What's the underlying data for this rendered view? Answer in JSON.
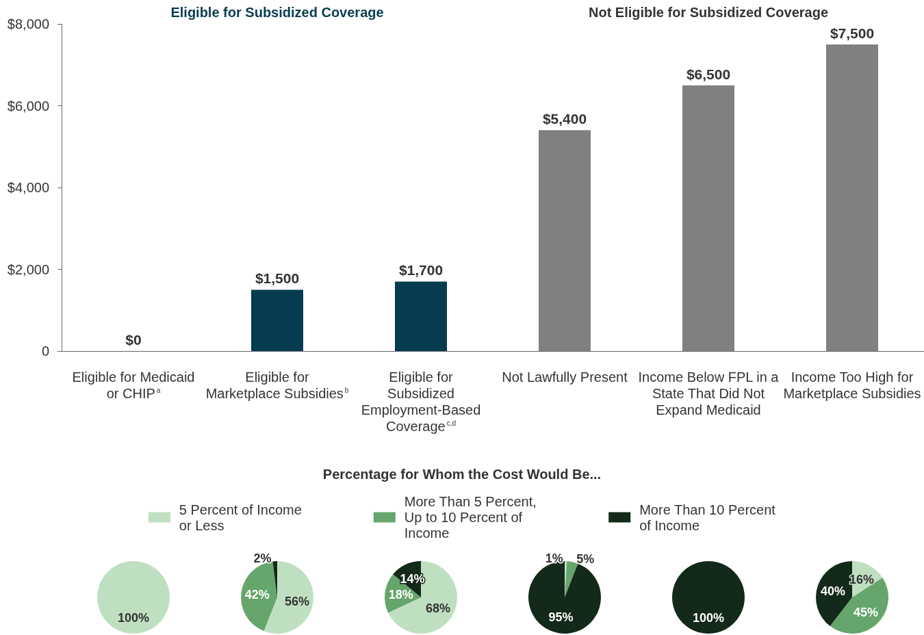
{
  "chart_data": [
    {
      "type": "bar",
      "categories": [
        "Eligible for Medicaid or CHIP$^{a}$",
        "Eligible for Marketplace Subsidies$^{b}$",
        "Eligible for Subsidized Employment-Based Coverage$^{c,d}$",
        "Not Lawfully Present",
        "Income Below FPL in a State That Did Not Expand Medicaid",
        "Income Too High for Marketplace Subsidies"
      ],
      "values": [
        0,
        1500,
        1700,
        5400,
        6500,
        7500
      ],
      "colors": [
        "#073c50",
        "#073c50",
        "#073c50",
        "#808083",
        "#808083",
        "#808083"
      ],
      "value_labels": [
        "$0",
        "$1,500",
        "$1,700",
        "$5,400",
        "$6,500",
        "$7,500"
      ],
      "ylim": [
        0,
        8000
      ],
      "yticks": [
        0,
        {
          "value": 2000,
          "label": "$2,000"
        },
        {
          "value": 4000,
          "label": "$4,000"
        },
        {
          "value": 6000,
          "label": "$6,000"
        },
        {
          "value": 8000,
          "label": "$8,000"
        }
      ],
      "annotations": [
        "Eligible for Subsidized Coverage",
        "Not Eligible for Subsidized Coverage"
      ]
    },
    {
      "type": "pie",
      "title": "Percentage for Whom the Cost Would Be...",
      "legend": "top",
      "categories": [
        "5 Percent of Income or Less",
        "More Than 5 Percent, Up to 10 Percent of Income",
        "More Than 10 Percent of Income"
      ],
      "colors": [
        "#bfdfc1",
        "#66a56b",
        "#13291a"
      ],
      "series": [
        {
          "values": [
            100,
            0,
            0
          ],
          "value_labels": [
            "100%",
            null,
            null
          ]
        },
        {
          "values": [
            56,
            42,
            2
          ],
          "value_labels": [
            "56%",
            "42%",
            "2%"
          ]
        },
        {
          "values": [
            68,
            18,
            14
          ],
          "value_labels": [
            "68%",
            "18%",
            "14%"
          ]
        },
        {
          "values": [
            1,
            5,
            95
          ],
          "value_labels": [
            "1%",
            "5%",
            "95%"
          ]
        },
        {
          "values": [
            0,
            0,
            100
          ],
          "value_labels": [
            null,
            null,
            "100%"
          ]
        },
        {
          "values": [
            16,
            45,
            40
          ],
          "value_labels": [
            "16%",
            "45%",
            "40%"
          ]
        }
      ]
    }
  ]
}
